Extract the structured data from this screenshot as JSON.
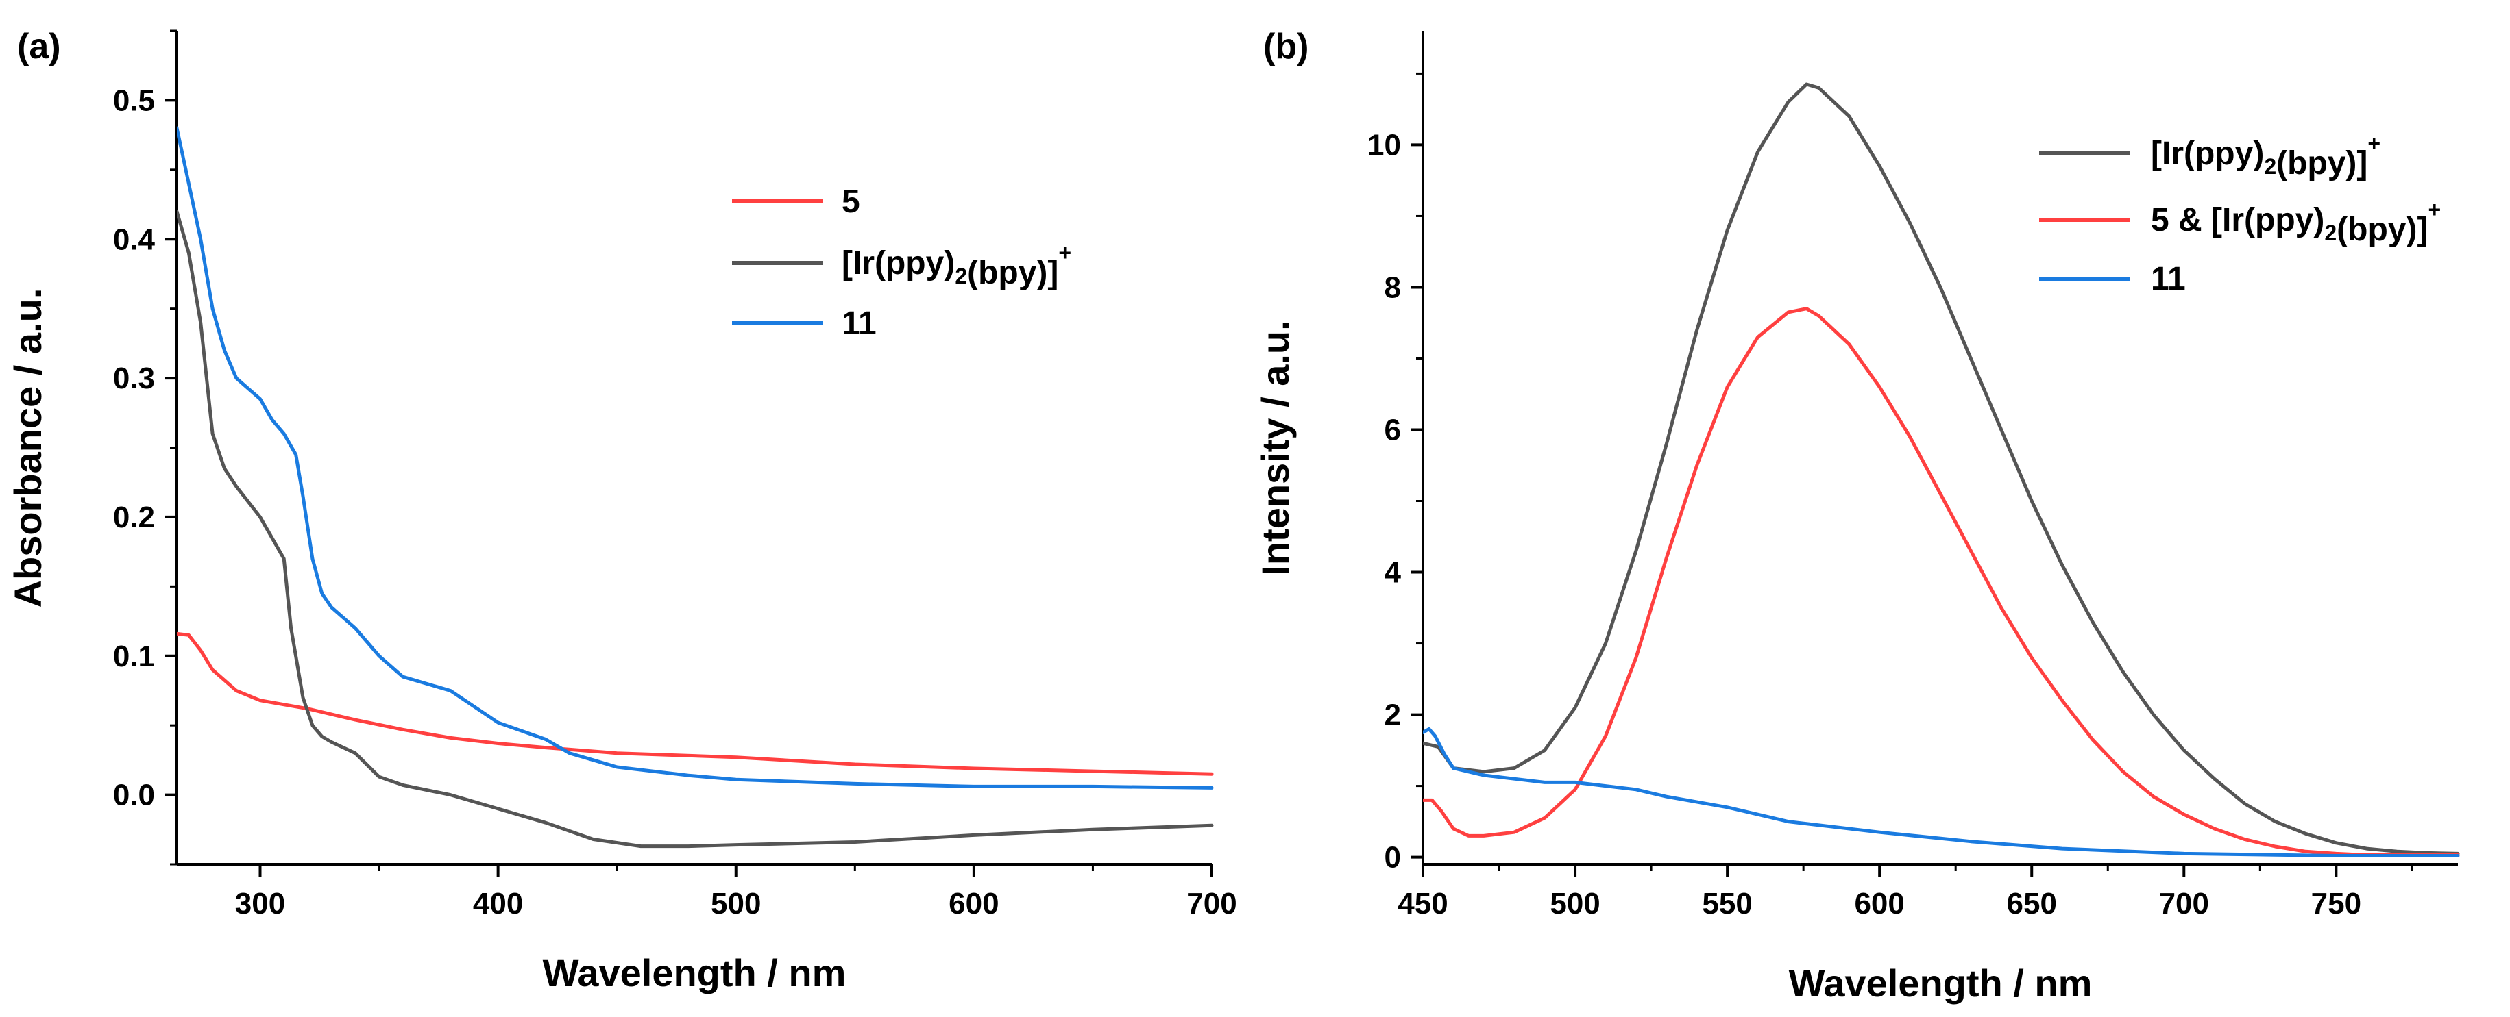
{
  "chart_data": [
    {
      "type": "line",
      "panel_label": "(a)",
      "xlabel": "Wavelength / nm",
      "ylabel": "Absorbance / a.u.",
      "xlim": [
        265,
        700
      ],
      "ylim": [
        -0.05,
        0.55
      ],
      "xticks": [
        300,
        400,
        500,
        600,
        700
      ],
      "xtick_labels": [
        "300",
        "400",
        "500",
        "600",
        "700"
      ],
      "yticks": [
        0.0,
        0.1,
        0.2,
        0.3,
        0.4,
        0.5
      ],
      "ytick_labels": [
        "0.0",
        "0.1",
        "0.2",
        "0.3",
        "0.4",
        "0.5"
      ],
      "legend_position": "upper-right",
      "series": [
        {
          "name": "5",
          "legend_parts": [
            {
              "t": "5"
            }
          ],
          "color": "#ff4040",
          "x": [
            265,
            270,
            275,
            280,
            290,
            300,
            320,
            340,
            360,
            380,
            400,
            420,
            450,
            500,
            550,
            600,
            650,
            700
          ],
          "y": [
            0.116,
            0.115,
            0.104,
            0.09,
            0.075,
            0.068,
            0.062,
            0.054,
            0.047,
            0.041,
            0.037,
            0.034,
            0.03,
            0.027,
            0.022,
            0.019,
            0.017,
            0.015
          ]
        },
        {
          "name": "[Ir(ppy)2(bpy)]+",
          "legend_parts": [
            {
              "t": "[Ir(ppy)"
            },
            {
              "t": "2",
              "sub": true
            },
            {
              "t": "(bpy)]"
            },
            {
              "t": "+",
              "sup": true
            }
          ],
          "color": "#555555",
          "x": [
            265,
            270,
            275,
            280,
            285,
            290,
            300,
            310,
            313,
            318,
            322,
            326,
            330,
            340,
            350,
            360,
            380,
            400,
            420,
            440,
            460,
            480,
            500,
            550,
            600,
            650,
            700
          ],
          "y": [
            0.42,
            0.39,
            0.34,
            0.26,
            0.235,
            0.222,
            0.2,
            0.17,
            0.12,
            0.07,
            0.05,
            0.042,
            0.038,
            0.03,
            0.013,
            0.007,
            0.0,
            -0.01,
            -0.02,
            -0.032,
            -0.037,
            -0.037,
            -0.036,
            -0.034,
            -0.029,
            -0.025,
            -0.022
          ]
        },
        {
          "name": "11",
          "legend_parts": [
            {
              "t": "11"
            }
          ],
          "color": "#1a7be0",
          "x": [
            265,
            270,
            275,
            280,
            285,
            290,
            300,
            305,
            310,
            315,
            318,
            322,
            326,
            330,
            340,
            350,
            360,
            380,
            400,
            420,
            430,
            450,
            480,
            500,
            550,
            600,
            650,
            700
          ],
          "y": [
            0.48,
            0.44,
            0.4,
            0.35,
            0.32,
            0.3,
            0.285,
            0.27,
            0.26,
            0.245,
            0.215,
            0.17,
            0.145,
            0.135,
            0.12,
            0.1,
            0.085,
            0.075,
            0.052,
            0.04,
            0.03,
            0.02,
            0.014,
            0.011,
            0.008,
            0.006,
            0.006,
            0.005
          ]
        }
      ]
    },
    {
      "type": "line",
      "panel_label": "(b)",
      "xlabel": "Wavelength / nm",
      "ylabel": "Intensity / a.u.",
      "xlim": [
        450,
        790
      ],
      "ylim": [
        -0.1,
        11.6
      ],
      "xticks": [
        450,
        500,
        550,
        600,
        650,
        700,
        750
      ],
      "xtick_labels": [
        "450",
        "500",
        "550",
        "600",
        "650",
        "700",
        "750"
      ],
      "yticks": [
        0,
        2,
        4,
        6,
        8,
        10
      ],
      "ytick_labels": [
        "0",
        "2",
        "4",
        "6",
        "8",
        "10"
      ],
      "legend_position": "upper-right",
      "series": [
        {
          "name": "[Ir(ppy)2(bpy)]+",
          "legend_parts": [
            {
              "t": "[Ir(ppy)"
            },
            {
              "t": "2",
              "sub": true
            },
            {
              "t": "(bpy)]"
            },
            {
              "t": "+",
              "sup": true
            }
          ],
          "color": "#555555",
          "x": [
            450,
            455,
            460,
            470,
            480,
            490,
            500,
            510,
            520,
            530,
            540,
            550,
            560,
            570,
            576,
            580,
            590,
            600,
            610,
            620,
            630,
            640,
            650,
            660,
            670,
            680,
            690,
            700,
            710,
            720,
            730,
            740,
            750,
            760,
            770,
            780,
            790
          ],
          "y": [
            1.6,
            1.55,
            1.25,
            1.2,
            1.25,
            1.5,
            2.1,
            3.0,
            4.3,
            5.8,
            7.4,
            8.8,
            9.9,
            10.6,
            10.85,
            10.8,
            10.4,
            9.7,
            8.9,
            8.0,
            7.0,
            6.0,
            5.0,
            4.1,
            3.3,
            2.6,
            2.0,
            1.5,
            1.1,
            0.75,
            0.5,
            0.33,
            0.2,
            0.12,
            0.08,
            0.06,
            0.05
          ]
        },
        {
          "name": "5 & [Ir(ppy)2(bpy)]+",
          "legend_parts": [
            {
              "t": "5 & [Ir(ppy)"
            },
            {
              "t": "2",
              "sub": true
            },
            {
              "t": "(bpy)]"
            },
            {
              "t": "+",
              "sup": true
            }
          ],
          "color": "#ff4040",
          "x": [
            450,
            453,
            456,
            460,
            465,
            470,
            480,
            490,
            500,
            510,
            520,
            530,
            540,
            550,
            560,
            570,
            576,
            580,
            590,
            600,
            610,
            620,
            630,
            640,
            650,
            660,
            670,
            680,
            690,
            700,
            710,
            720,
            730,
            740,
            750,
            760,
            770,
            780,
            790
          ],
          "y": [
            0.8,
            0.8,
            0.65,
            0.4,
            0.3,
            0.3,
            0.35,
            0.55,
            0.95,
            1.7,
            2.8,
            4.2,
            5.5,
            6.6,
            7.3,
            7.65,
            7.7,
            7.6,
            7.2,
            6.6,
            5.9,
            5.1,
            4.3,
            3.5,
            2.8,
            2.2,
            1.65,
            1.2,
            0.85,
            0.6,
            0.4,
            0.25,
            0.15,
            0.08,
            0.05,
            0.03,
            0.03,
            0.03,
            0.03
          ]
        },
        {
          "name": "11",
          "legend_parts": [
            {
              "t": "11"
            }
          ],
          "color": "#1a7be0",
          "x": [
            450,
            452,
            454,
            457,
            460,
            465,
            470,
            480,
            490,
            500,
            510,
            520,
            530,
            550,
            570,
            600,
            630,
            660,
            700,
            750,
            790
          ],
          "y": [
            1.75,
            1.8,
            1.7,
            1.45,
            1.25,
            1.2,
            1.15,
            1.1,
            1.05,
            1.05,
            1.0,
            0.95,
            0.85,
            0.7,
            0.5,
            0.35,
            0.22,
            0.12,
            0.05,
            0.02,
            0.02
          ]
        }
      ]
    }
  ]
}
